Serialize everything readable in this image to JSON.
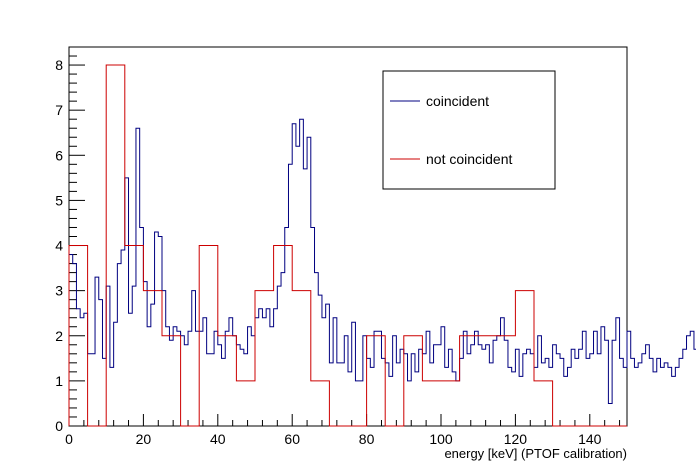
{
  "chart_data": {
    "type": "line",
    "xlabel": "energy [keV] (PTOF calibration)",
    "ylabel": "",
    "xlim": [
      0,
      150
    ],
    "ylim": [
      0,
      8.4
    ],
    "x_ticks": [
      "0",
      "20",
      "40",
      "60",
      "80",
      "100",
      "120",
      "140"
    ],
    "y_ticks": [
      "0",
      "1",
      "2",
      "3",
      "4",
      "5",
      "6",
      "7",
      "8"
    ],
    "grid": false,
    "legend_position": "top-right",
    "series": [
      {
        "name": "coincident",
        "color": "#000080",
        "style": "histogram",
        "bin_width": 1,
        "x_start": 0,
        "values": [
          3.8,
          3.6,
          2.6,
          2.4,
          2.5,
          1.6,
          1.6,
          3.3,
          2.8,
          1.5,
          3.1,
          1.3,
          2.3,
          3.6,
          3.9,
          5.5,
          2.5,
          3.1,
          6.6,
          4.4,
          3.2,
          2.2,
          2.7,
          4.3,
          4.2,
          3.0,
          2.2,
          1.9,
          2.2,
          2.1,
          2.0,
          1.8,
          2.1,
          3.0,
          2.1,
          2.1,
          2.4,
          1.6,
          1.6,
          2.1,
          1.8,
          1.5,
          2.1,
          2.4,
          2.0,
          1.8,
          1.7,
          1.6,
          2.2,
          2.0,
          2.4,
          2.6,
          2.4,
          2.6,
          2.2,
          2.6,
          3.1,
          3.4,
          4.4,
          5.8,
          6.7,
          6.2,
          6.8,
          5.7,
          6.4,
          4.4,
          3.4,
          2.9,
          2.4,
          2.7,
          1.4,
          2.4,
          1.4,
          1.4,
          2.0,
          1.2,
          2.3,
          1.0,
          1.0,
          2.0,
          1.5,
          1.3,
          2.1,
          2.1,
          1.5,
          1.4,
          1.1,
          2.0,
          1.4,
          1.7,
          1.6,
          1.0,
          1.6,
          1.2,
          1.7,
          1.6,
          2.1,
          1.4,
          1.8,
          1.8,
          2.2,
          1.3,
          1.7,
          1.2,
          1.0,
          1.5,
          2.1,
          1.6,
          1.8,
          2.1,
          1.8,
          1.7,
          1.8,
          1.4,
          1.9,
          2.0,
          2.4,
          1.9,
          1.3,
          1.2,
          1.7,
          1.1,
          1.6,
          1.7,
          1.6,
          1.3,
          2.0,
          1.4,
          1.5,
          1.3,
          1.8,
          1.6,
          1.5,
          1.1,
          1.3,
          1.7,
          1.5,
          1.7,
          2.1,
          1.5,
          1.6,
          2.1,
          1.6,
          2.2,
          1.9,
          0.5,
          1.9,
          2.4,
          1.5,
          1.3,
          2.1,
          1.5,
          1.3,
          1.4,
          1.6,
          1.8,
          1.5,
          1.2,
          1.5,
          1.3,
          1.4,
          1.3,
          1.1,
          1.3,
          1.5,
          1.7,
          2.0,
          2.1,
          1.7,
          1.3,
          1.2,
          1.7,
          1.3,
          2.0,
          1.9,
          2.1,
          1.2,
          1.6
        ]
      },
      {
        "name": "not coincident",
        "color": "#cc0000",
        "style": "histogram",
        "bin_width": 5,
        "x_start": 0,
        "values": [
          4,
          0,
          8,
          4,
          3,
          2,
          0,
          4,
          2,
          1,
          3,
          4,
          3,
          1,
          0,
          0,
          2,
          0,
          2,
          1,
          1,
          2,
          2,
          2,
          3,
          1,
          0,
          0,
          0,
          0
        ]
      }
    ]
  }
}
